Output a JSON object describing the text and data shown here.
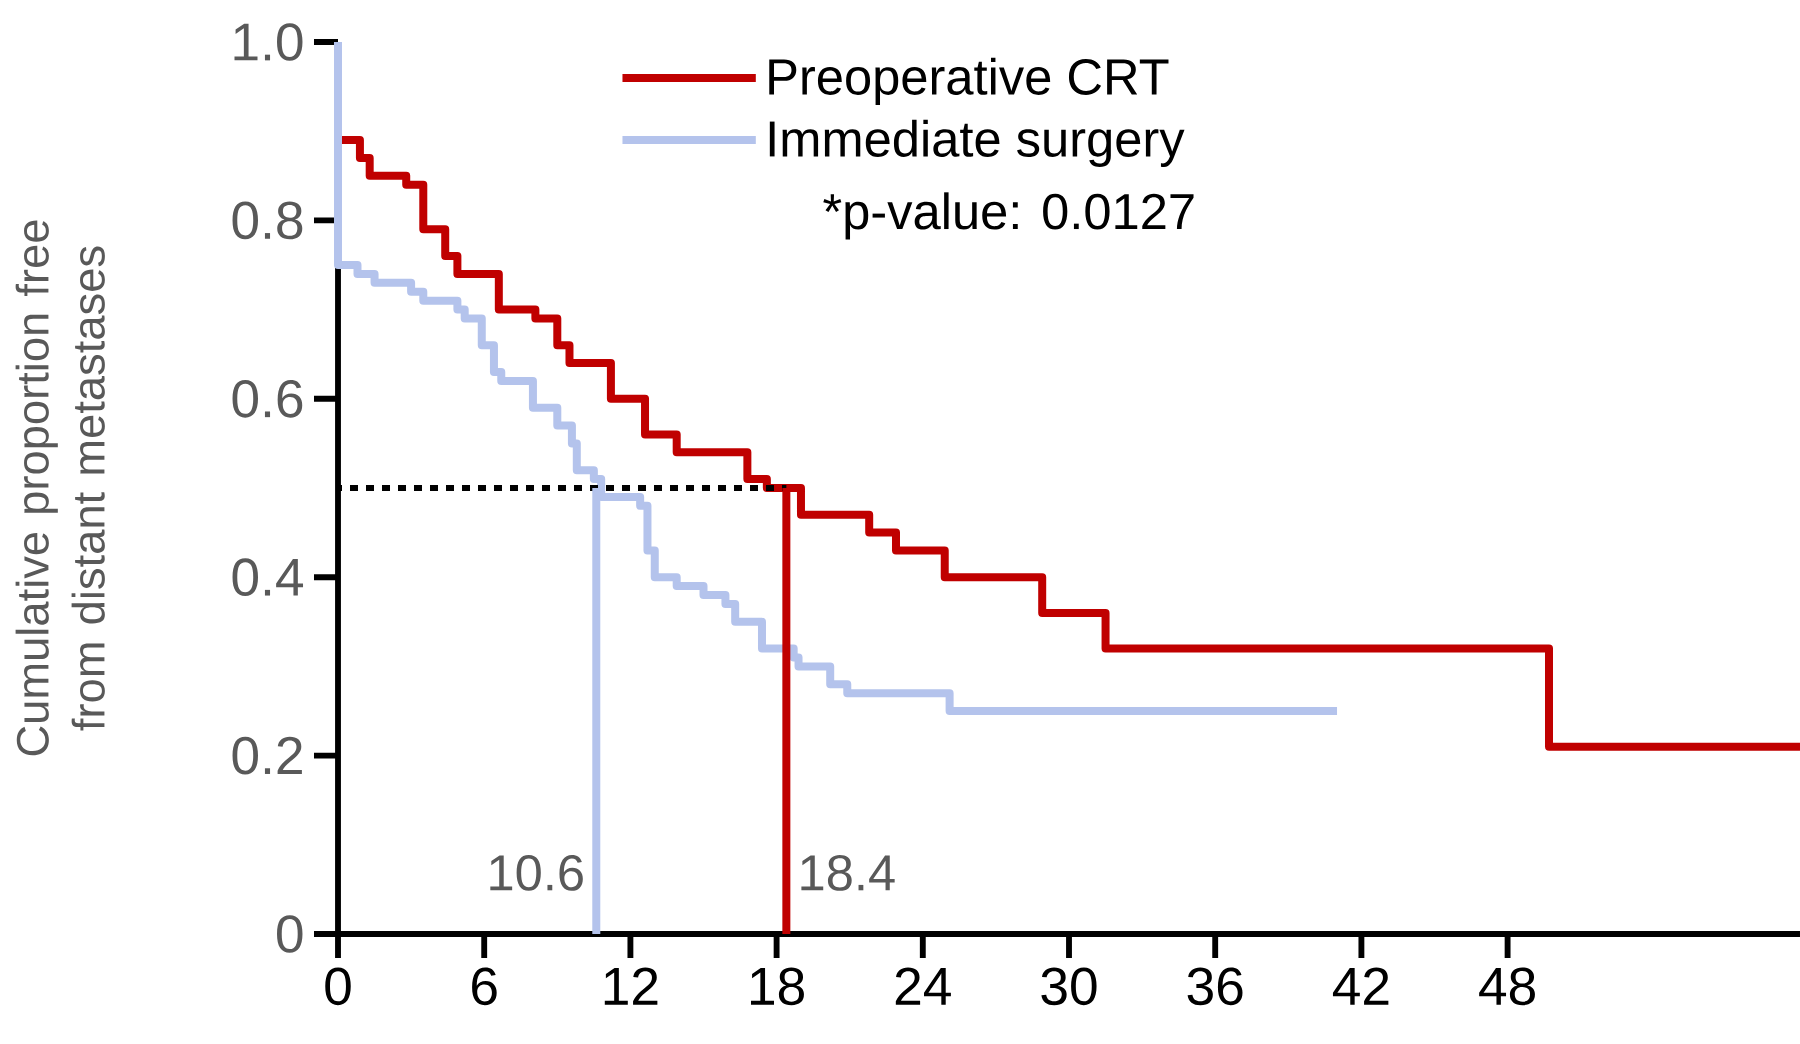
{
  "chart_data": {
    "type": "step",
    "ylabel": "Cumulative proportion free from distant metastases",
    "xlim": [
      0,
      60
    ],
    "xticks": [
      0,
      6,
      12,
      18,
      24,
      30,
      36,
      42,
      48
    ],
    "ylim": [
      0,
      1
    ],
    "yticks": [
      0,
      0.2,
      0.4,
      0.6,
      0.8,
      {
        "value": 1,
        "label": "1.0"
      }
    ],
    "legend": "top",
    "grid": false,
    "marker": "none",
    "series": [
      {
        "name": "Preoperative CRT",
        "color": "#c00000",
        "x": [
          0,
          0,
          0.9,
          1.3,
          2.8,
          3.5,
          4.4,
          4.9,
          6.6,
          8.1,
          9.0,
          9.5,
          11.2,
          12.6,
          13.9,
          16.8,
          17.6,
          19.0,
          21.8,
          22.9,
          24.9,
          28.9,
          31.5,
          49.7,
          60
        ],
        "values": [
          1.0,
          0.89,
          0.87,
          0.85,
          0.84,
          0.79,
          0.76,
          0.74,
          0.7,
          0.69,
          0.66,
          0.64,
          0.6,
          0.56,
          0.54,
          0.51,
          0.5,
          0.47,
          0.45,
          0.43,
          0.4,
          0.36,
          0.32,
          0.21,
          0.21
        ]
      },
      {
        "name": "Immediate surgery",
        "color": "#b4c3ec",
        "x": [
          0,
          0,
          0.8,
          1.5,
          2.5,
          3.0,
          3.5,
          4.9,
          5.2,
          5.9,
          6.4,
          6.7,
          8.0,
          9.0,
          9.6,
          9.8,
          10.5,
          10.8,
          12.4,
          12.7,
          13.0,
          13.9,
          15.0,
          15.9,
          16.3,
          17.4,
          18.7,
          18.9,
          20.2,
          20.9,
          25.1,
          41.0
        ],
        "values": [
          1.0,
          0.75,
          0.74,
          0.73,
          0.73,
          0.72,
          0.71,
          0.7,
          0.69,
          0.66,
          0.63,
          0.62,
          0.59,
          0.57,
          0.55,
          0.52,
          0.51,
          0.49,
          0.48,
          0.43,
          0.4,
          0.39,
          0.38,
          0.37,
          0.35,
          0.32,
          0.31,
          0.3,
          0.28,
          0.27,
          0.25,
          0.25
        ]
      },
      {
        "type": "line",
        "color": "#000000",
        "line_style": "dotted",
        "x": [
          0,
          18.4
        ],
        "values": [
          0.5,
          0.5
        ]
      },
      {
        "type": "line",
        "color": "#b4c3ec",
        "x": [
          10.6,
          10.6
        ],
        "values": [
          0.5,
          0
        ]
      },
      {
        "type": "line",
        "color": "#c00000",
        "x": [
          18.4,
          18.4
        ],
        "values": [
          0.5,
          0
        ]
      }
    ],
    "annotations": [
      "*p-value: 0.0127",
      {
        "text": "10.6",
        "x": 10.6,
        "y": 0
      },
      {
        "text": "18.4",
        "x": 18.4,
        "y": 0
      }
    ]
  }
}
